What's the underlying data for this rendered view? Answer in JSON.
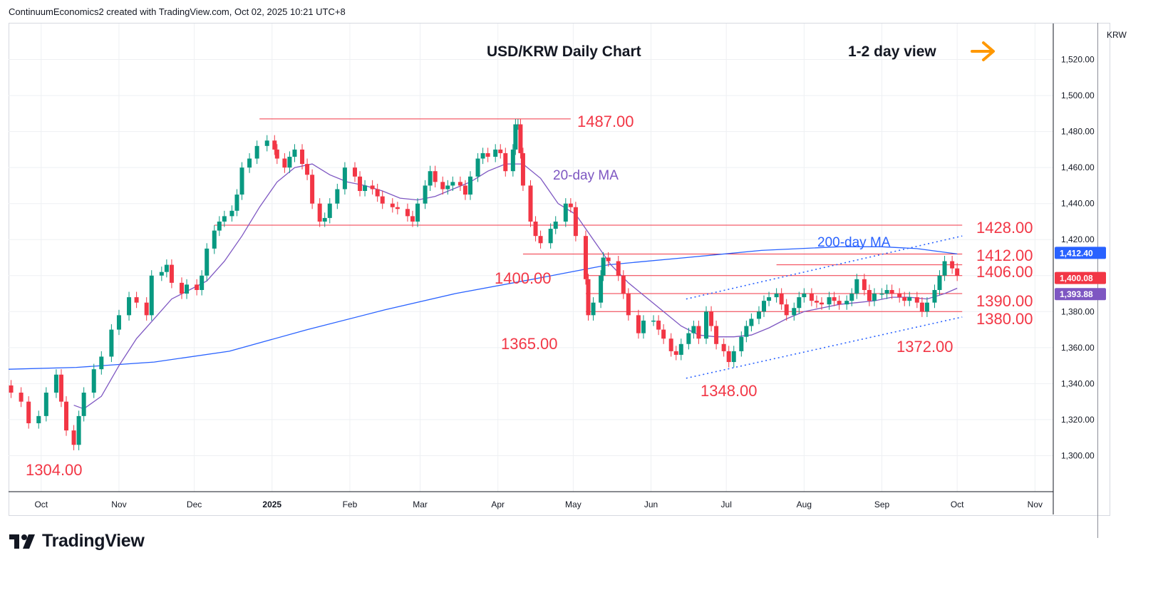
{
  "header": {
    "credit": "ContinuumEconomics2 created with TradingView.com, Oct 02, 2025 10:21 UTC+8"
  },
  "branding": {
    "logo_text": "TradingView"
  },
  "chart_data": {
    "type": "candlestick",
    "title": "USD/KRW Daily Chart",
    "subtitle": "1-2 day view",
    "view_direction": "sideways",
    "currency": "KRW",
    "xlabel": "",
    "ylabel": "",
    "ylim": [
      1280,
      1540
    ],
    "y_ticks": [
      1300,
      1320,
      1340,
      1360,
      1380,
      1400,
      1420,
      1440,
      1460,
      1480,
      1500,
      1520
    ],
    "y_tick_labels": [
      "1,300.00",
      "1,320.00",
      "1,340.00",
      "1,360.00",
      "1,380.00",
      "1,400.00",
      "1,420.00",
      "1,440.00",
      "1,460.00",
      "1,480.00",
      "1,500.00",
      "1,520.00"
    ],
    "x_range": [
      "2024-09-18",
      "2025-11-08"
    ],
    "x_ticks": [
      {
        "date": "2024-10-01",
        "label": "Oct"
      },
      {
        "date": "2024-11-01",
        "label": "Nov"
      },
      {
        "date": "2024-12-01",
        "label": "Dec"
      },
      {
        "date": "2025-01-01",
        "label": "2025"
      },
      {
        "date": "2025-02-01",
        "label": "Feb"
      },
      {
        "date": "2025-03-01",
        "label": "Mar"
      },
      {
        "date": "2025-04-01",
        "label": "Apr"
      },
      {
        "date": "2025-05-01",
        "label": "May"
      },
      {
        "date": "2025-06-01",
        "label": "Jun"
      },
      {
        "date": "2025-07-01",
        "label": "Jul"
      },
      {
        "date": "2025-08-01",
        "label": "Aug"
      },
      {
        "date": "2025-09-01",
        "label": "Sep"
      },
      {
        "date": "2025-10-01",
        "label": "Oct"
      },
      {
        "date": "2025-11-01",
        "label": "Nov"
      }
    ],
    "grid": true,
    "colors": {
      "up": "#089981",
      "down": "#f23645",
      "ma20": "#7e57c2",
      "ma200": "#2962ff",
      "level": "#f23645",
      "annotation": "#f23645",
      "arrow": "#ff9800",
      "trendline": "#2962ff"
    },
    "close_series": [
      [
        "2024-09-19",
        1335
      ],
      [
        "2024-09-23",
        1330
      ],
      [
        "2024-09-26",
        1318
      ],
      [
        "2024-09-30",
        1322
      ],
      [
        "2024-10-03",
        1335
      ],
      [
        "2024-10-07",
        1345
      ],
      [
        "2024-10-09",
        1330
      ],
      [
        "2024-10-11",
        1314
      ],
      [
        "2024-10-14",
        1306
      ],
      [
        "2024-10-16",
        1322
      ],
      [
        "2024-10-18",
        1335
      ],
      [
        "2024-10-22",
        1348
      ],
      [
        "2024-10-25",
        1355
      ],
      [
        "2024-10-29",
        1370
      ],
      [
        "2024-11-01",
        1378
      ],
      [
        "2024-11-05",
        1388
      ],
      [
        "2024-11-08",
        1385
      ],
      [
        "2024-11-12",
        1378
      ],
      [
        "2024-11-14",
        1400
      ],
      [
        "2024-11-18",
        1402
      ],
      [
        "2024-11-20",
        1406
      ],
      [
        "2024-11-22",
        1396
      ],
      [
        "2024-11-26",
        1390
      ],
      [
        "2024-11-28",
        1395
      ],
      [
        "2024-12-02",
        1392
      ],
      [
        "2024-12-04",
        1400
      ],
      [
        "2024-12-06",
        1415
      ],
      [
        "2024-12-09",
        1425
      ],
      [
        "2024-12-11",
        1430
      ],
      [
        "2024-12-13",
        1433
      ],
      [
        "2024-12-16",
        1436
      ],
      [
        "2024-12-18",
        1445
      ],
      [
        "2024-12-20",
        1460
      ],
      [
        "2024-12-23",
        1465
      ],
      [
        "2024-12-26",
        1472
      ],
      [
        "2024-12-30",
        1475
      ],
      [
        "2025-01-02",
        1470
      ],
      [
        "2025-01-03",
        1465
      ],
      [
        "2025-01-06",
        1460
      ],
      [
        "2025-01-08",
        1466
      ],
      [
        "2025-01-10",
        1470
      ],
      [
        "2025-01-13",
        1462
      ],
      [
        "2025-01-15",
        1456
      ],
      [
        "2025-01-17",
        1440
      ],
      [
        "2025-01-20",
        1430
      ],
      [
        "2025-01-22",
        1432
      ],
      [
        "2025-01-24",
        1440
      ],
      [
        "2025-01-27",
        1448
      ],
      [
        "2025-01-30",
        1460
      ],
      [
        "2025-02-03",
        1455
      ],
      [
        "2025-02-05",
        1447
      ],
      [
        "2025-02-07",
        1450
      ],
      [
        "2025-02-10",
        1448
      ],
      [
        "2025-02-12",
        1444
      ],
      [
        "2025-02-14",
        1440
      ],
      [
        "2025-02-18",
        1438
      ],
      [
        "2025-02-20",
        1437
      ],
      [
        "2025-02-24",
        1433
      ],
      [
        "2025-02-26",
        1430
      ],
      [
        "2025-02-28",
        1440
      ],
      [
        "2025-03-03",
        1450
      ],
      [
        "2025-03-05",
        1458
      ],
      [
        "2025-03-07",
        1452
      ],
      [
        "2025-03-10",
        1448
      ],
      [
        "2025-03-12",
        1450
      ],
      [
        "2025-03-14",
        1452
      ],
      [
        "2025-03-17",
        1450
      ],
      [
        "2025-03-19",
        1445
      ],
      [
        "2025-03-21",
        1455
      ],
      [
        "2025-03-24",
        1465
      ],
      [
        "2025-03-26",
        1468
      ],
      [
        "2025-03-28",
        1466
      ],
      [
        "2025-03-31",
        1470
      ],
      [
        "2025-04-02",
        1468
      ],
      [
        "2025-04-04",
        1458
      ],
      [
        "2025-04-07",
        1470
      ],
      [
        "2025-04-08",
        1484
      ],
      [
        "2025-04-09",
        1484
      ],
      [
        "2025-04-10",
        1468
      ],
      [
        "2025-04-11",
        1450
      ],
      [
        "2025-04-14",
        1430
      ],
      [
        "2025-04-16",
        1422
      ],
      [
        "2025-04-18",
        1418
      ],
      [
        "2025-04-22",
        1426
      ],
      [
        "2025-04-24",
        1430
      ],
      [
        "2025-04-28",
        1440
      ],
      [
        "2025-04-30",
        1438
      ],
      [
        "2025-05-02",
        1422
      ],
      [
        "2025-05-06",
        1398
      ],
      [
        "2025-05-07",
        1378
      ],
      [
        "2025-05-09",
        1385
      ],
      [
        "2025-05-12",
        1400
      ],
      [
        "2025-05-13",
        1410
      ],
      [
        "2025-05-15",
        1408
      ],
      [
        "2025-05-19",
        1400
      ],
      [
        "2025-05-21",
        1390
      ],
      [
        "2025-05-23",
        1378
      ],
      [
        "2025-05-27",
        1368
      ],
      [
        "2025-05-29",
        1375
      ],
      [
        "2025-06-02",
        1375
      ],
      [
        "2025-06-04",
        1370
      ],
      [
        "2025-06-06",
        1365
      ],
      [
        "2025-06-09",
        1358
      ],
      [
        "2025-06-11",
        1356
      ],
      [
        "2025-06-13",
        1362
      ],
      [
        "2025-06-16",
        1368
      ],
      [
        "2025-06-18",
        1372
      ],
      [
        "2025-06-20",
        1365
      ],
      [
        "2025-06-23",
        1380
      ],
      [
        "2025-06-25",
        1372
      ],
      [
        "2025-06-27",
        1362
      ],
      [
        "2025-06-30",
        1358
      ],
      [
        "2025-07-02",
        1352
      ],
      [
        "2025-07-04",
        1358
      ],
      [
        "2025-07-07",
        1366
      ],
      [
        "2025-07-09",
        1372
      ],
      [
        "2025-07-11",
        1376
      ],
      [
        "2025-07-14",
        1380
      ],
      [
        "2025-07-16",
        1386
      ],
      [
        "2025-07-18",
        1388
      ],
      [
        "2025-07-21",
        1390
      ],
      [
        "2025-07-23",
        1384
      ],
      [
        "2025-07-25",
        1378
      ],
      [
        "2025-07-28",
        1382
      ],
      [
        "2025-07-30",
        1388
      ],
      [
        "2025-08-01",
        1390
      ],
      [
        "2025-08-04",
        1386
      ],
      [
        "2025-08-06",
        1385
      ],
      [
        "2025-08-08",
        1384
      ],
      [
        "2025-08-11",
        1388
      ],
      [
        "2025-08-13",
        1386
      ],
      [
        "2025-08-15",
        1384
      ],
      [
        "2025-08-18",
        1386
      ],
      [
        "2025-08-20",
        1390
      ],
      [
        "2025-08-22",
        1398
      ],
      [
        "2025-08-25",
        1392
      ],
      [
        "2025-08-27",
        1386
      ],
      [
        "2025-08-29",
        1390
      ],
      [
        "2025-09-01",
        1390
      ],
      [
        "2025-09-03",
        1392
      ],
      [
        "2025-09-05",
        1390
      ],
      [
        "2025-09-08",
        1388
      ],
      [
        "2025-09-10",
        1386
      ],
      [
        "2025-09-12",
        1388
      ],
      [
        "2025-09-15",
        1385
      ],
      [
        "2025-09-17",
        1380
      ],
      [
        "2025-09-19",
        1385
      ],
      [
        "2025-09-22",
        1392
      ],
      [
        "2025-09-24",
        1400
      ],
      [
        "2025-09-26",
        1408
      ],
      [
        "2025-09-29",
        1404
      ],
      [
        "2025-10-01",
        1400
      ]
    ],
    "ma20_series": [
      [
        "2024-10-14",
        1328
      ],
      [
        "2024-10-18",
        1326
      ],
      [
        "2024-10-25",
        1333
      ],
      [
        "2024-11-01",
        1350
      ],
      [
        "2024-11-08",
        1365
      ],
      [
        "2024-11-15",
        1376
      ],
      [
        "2024-11-22",
        1387
      ],
      [
        "2024-11-29",
        1392
      ],
      [
        "2024-12-06",
        1397
      ],
      [
        "2024-12-13",
        1408
      ],
      [
        "2024-12-20",
        1422
      ],
      [
        "2024-12-27",
        1438
      ],
      [
        "2025-01-03",
        1452
      ],
      [
        "2025-01-10",
        1460
      ],
      [
        "2025-01-17",
        1462
      ],
      [
        "2025-01-24",
        1456
      ],
      [
        "2025-01-31",
        1452
      ],
      [
        "2025-02-07",
        1450
      ],
      [
        "2025-02-14",
        1447
      ],
      [
        "2025-02-21",
        1443
      ],
      [
        "2025-02-28",
        1442
      ],
      [
        "2025-03-07",
        1444
      ],
      [
        "2025-03-14",
        1448
      ],
      [
        "2025-03-21",
        1452
      ],
      [
        "2025-03-28",
        1458
      ],
      [
        "2025-04-04",
        1462
      ],
      [
        "2025-04-11",
        1462
      ],
      [
        "2025-04-18",
        1454
      ],
      [
        "2025-04-25",
        1440
      ],
      [
        "2025-05-02",
        1434
      ],
      [
        "2025-05-09",
        1420
      ],
      [
        "2025-05-16",
        1406
      ],
      [
        "2025-05-23",
        1396
      ],
      [
        "2025-05-30",
        1388
      ],
      [
        "2025-06-06",
        1380
      ],
      [
        "2025-06-13",
        1372
      ],
      [
        "2025-06-20",
        1367
      ],
      [
        "2025-06-27",
        1366
      ],
      [
        "2025-07-04",
        1366
      ],
      [
        "2025-07-11",
        1367
      ],
      [
        "2025-07-18",
        1371
      ],
      [
        "2025-07-25",
        1376
      ],
      [
        "2025-08-01",
        1380
      ],
      [
        "2025-08-08",
        1382
      ],
      [
        "2025-08-15",
        1384
      ],
      [
        "2025-08-22",
        1385
      ],
      [
        "2025-08-29",
        1386
      ],
      [
        "2025-09-05",
        1388
      ],
      [
        "2025-09-12",
        1388
      ],
      [
        "2025-09-19",
        1387
      ],
      [
        "2025-09-26",
        1390
      ],
      [
        "2025-10-01",
        1393
      ]
    ],
    "ma200_series": [
      [
        "2024-09-18",
        1348
      ],
      [
        "2024-10-15",
        1349
      ],
      [
        "2024-11-15",
        1352
      ],
      [
        "2024-12-15",
        1358
      ],
      [
        "2025-01-15",
        1370
      ],
      [
        "2025-02-15",
        1381
      ],
      [
        "2025-03-15",
        1390
      ],
      [
        "2025-04-15",
        1398
      ],
      [
        "2025-05-15",
        1406
      ],
      [
        "2025-06-15",
        1410
      ],
      [
        "2025-07-15",
        1414
      ],
      [
        "2025-08-15",
        1416
      ],
      [
        "2025-09-01",
        1416
      ],
      [
        "2025-09-15",
        1415
      ],
      [
        "2025-10-01",
        1412
      ]
    ],
    "levels": [
      {
        "value": 1487,
        "label": "1487.00",
        "from": "2024-12-27",
        "to": "2025-04-30"
      },
      {
        "value": 1428,
        "label": "1428.00",
        "from": "2024-12-09",
        "to": "2025-10-03"
      },
      {
        "value": 1412,
        "label": "1412.00",
        "from": "2025-04-11",
        "to": "2025-10-03"
      },
      {
        "value": 1406,
        "label": "1406.00",
        "from": "2025-07-21",
        "to": "2025-10-03"
      },
      {
        "value": 1400,
        "label": "1400.00",
        "from": "2025-05-06",
        "to": "2025-10-03"
      },
      {
        "value": 1390,
        "label": "1390.00",
        "from": "2025-05-06",
        "to": "2025-10-03"
      },
      {
        "value": 1380,
        "label": "1380.00",
        "from": "2025-05-06",
        "to": "2025-10-03"
      }
    ],
    "price_labels": [
      {
        "value": 1365,
        "label": "1365.00"
      },
      {
        "value": 1348,
        "label": "1348.00"
      },
      {
        "value": 1372,
        "label": "1372.00"
      },
      {
        "value": 1304,
        "label": "1304.00"
      }
    ],
    "trendlines": [
      {
        "from": [
          "2025-06-15",
          1387
        ],
        "to": [
          "2025-10-03",
          1422
        ]
      },
      {
        "from": [
          "2025-06-15",
          1343
        ],
        "to": [
          "2025-10-03",
          1377
        ]
      }
    ],
    "ma_labels": {
      "ma20": "20-day MA",
      "ma200": "200-day MA"
    },
    "price_badges": [
      {
        "value": 1412.4,
        "label": "1,412.40",
        "color": "#2962ff"
      },
      {
        "value": 1400.08,
        "label": "1,400.08",
        "color": "#f23645"
      },
      {
        "value": 1393.88,
        "label": "1,393.88",
        "color": "#7e57c2"
      }
    ]
  }
}
